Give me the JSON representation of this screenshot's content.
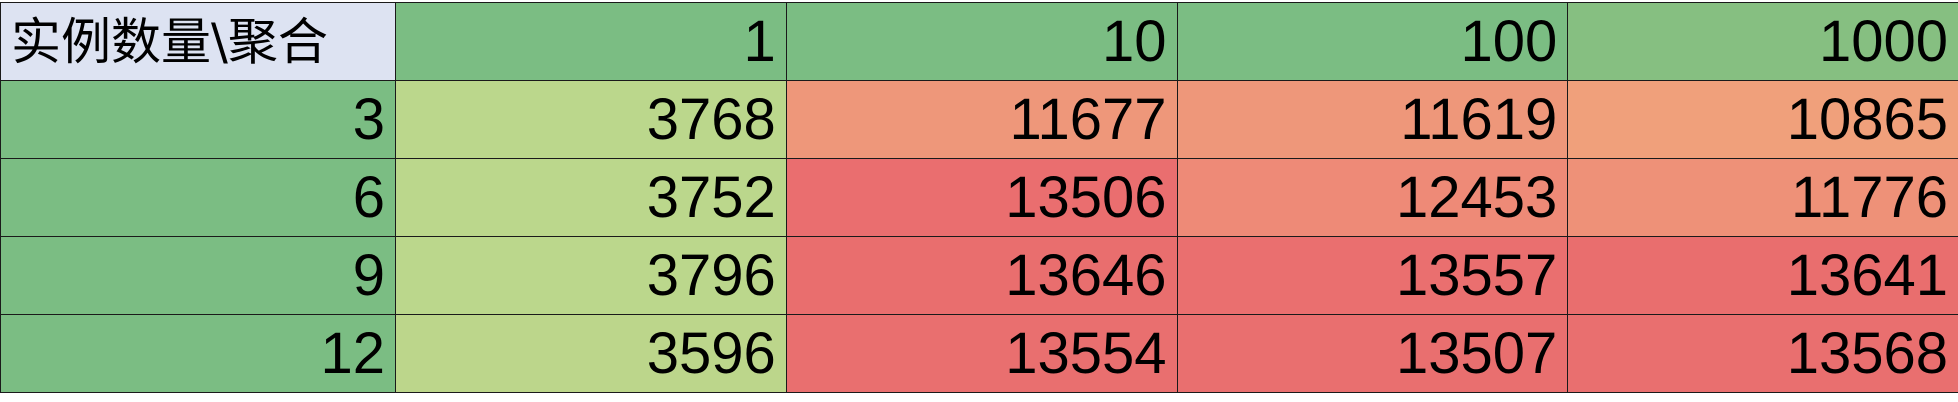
{
  "table": {
    "corner_label": "实例数量\\聚合",
    "columns": [
      "1",
      "10",
      "100",
      "1000"
    ],
    "rows": [
      {
        "label": "3",
        "values": [
          "3768",
          "11677",
          "11619",
          "10865"
        ]
      },
      {
        "label": "6",
        "values": [
          "3752",
          "13506",
          "12453",
          "11776"
        ]
      },
      {
        "label": "9",
        "values": [
          "3796",
          "13646",
          "13557",
          "13641"
        ]
      },
      {
        "label": "12",
        "values": [
          "3596",
          "13554",
          "13507",
          "13568"
        ]
      }
    ]
  },
  "colors": {
    "corner_bg": "#dde3f2",
    "header_bg": [
      "#7bbd83",
      "#7bbd83",
      "#7bbd83",
      "#86bf81"
    ],
    "row_label_bg": "#7bbd83",
    "cell_bg": [
      [
        "#bbd78c",
        "#ee977a",
        "#ee977a",
        "#f0a07b"
      ],
      [
        "#bbd78c",
        "#ea6e6f",
        "#ee8a77",
        "#ee9178"
      ],
      [
        "#bbd78c",
        "#e96e6e",
        "#ea6f6f",
        "#e96e6e"
      ],
      [
        "#bcd68b",
        "#e96f6f",
        "#e96f6f",
        "#e96f6f"
      ]
    ]
  }
}
